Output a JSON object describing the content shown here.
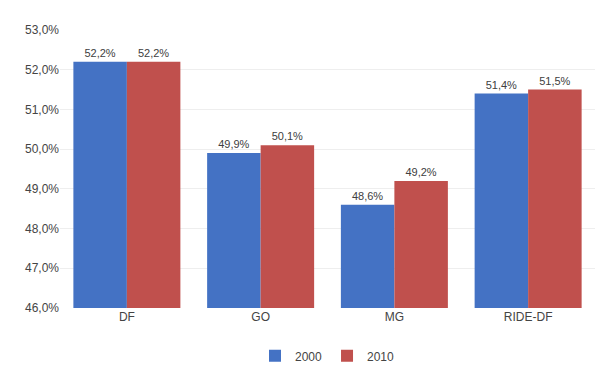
{
  "chart_data": {
    "type": "bar",
    "categories": [
      "DF",
      "GO",
      "MG",
      "RIDE-DF"
    ],
    "series": [
      {
        "name": "2000",
        "color": "#4472C4",
        "values": [
          52.2,
          49.9,
          48.6,
          51.4
        ],
        "value_labels": [
          "52,2%",
          "49,9%",
          "48,6%",
          "51,4%"
        ]
      },
      {
        "name": "2010",
        "color": "#C0504D",
        "values": [
          52.2,
          50.1,
          49.2,
          51.5
        ],
        "value_labels": [
          "52,2%",
          "50,1%",
          "49,2%",
          "51,5%"
        ]
      }
    ],
    "ylim": [
      46.0,
      53.0
    ],
    "yticks": [
      {
        "value": 46.0,
        "label": "46,0%"
      },
      {
        "value": 47.0,
        "label": "47,0%"
      },
      {
        "value": 48.0,
        "label": "48,0%"
      },
      {
        "value": 49.0,
        "label": "49,0%"
      },
      {
        "value": 50.0,
        "label": "50,0%"
      },
      {
        "value": 51.0,
        "label": "51,0%"
      },
      {
        "value": 52.0,
        "label": "52,0%"
      },
      {
        "value": 53.0,
        "label": "53,0%"
      }
    ],
    "grid": true,
    "legend": "bottom",
    "data_labels": true
  }
}
